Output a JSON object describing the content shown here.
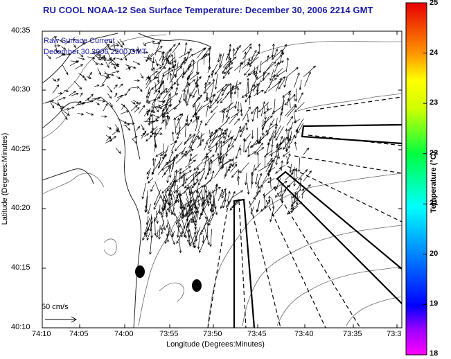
{
  "title": "RU COOL  NOAA-12  Sea Surface Temperature:  December 30, 2006 2214 GMT",
  "legend": {
    "line1": "Raw Surface Current",
    "line2": "December 30 2006 2200 GMT"
  },
  "axes": {
    "xlabel": "Longitude (Degrees:Minutes)",
    "ylabel": "Latitude (Degrees:Minutes)",
    "xticks": [
      "74:10",
      "74:05",
      "74:00",
      "73:55",
      "73:50",
      "73:45",
      "73:40",
      "73:35",
      "73:3"
    ],
    "yticks": [
      "40:35",
      "40:30",
      "40:25",
      "40:20",
      "40:15",
      "40:10"
    ]
  },
  "colorbar": {
    "title": "Temperature (°C)",
    "ticks": [
      "25",
      "24",
      "23",
      "22",
      "21",
      "20",
      "19",
      "18"
    ],
    "range": [
      18,
      25
    ]
  },
  "scale_arrow": {
    "label": "50 cm/s"
  },
  "colors": {
    "title": "#1a1aa8",
    "background": "#ffffff",
    "lines": "#000000"
  }
}
